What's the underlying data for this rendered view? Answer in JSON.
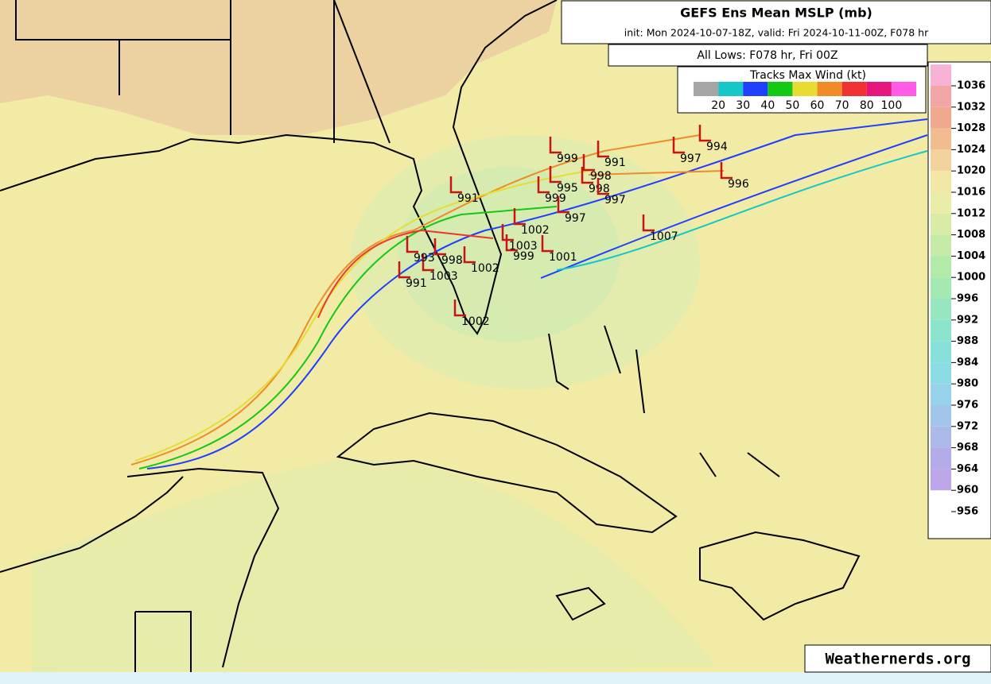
{
  "header": {
    "title": "GEFS Ens Mean MSLP (mb)",
    "subtitle": "init: Mon 2024-10-07-18Z, valid: Fri 2024-10-11-00Z, F078 hr",
    "lows_label": "All Lows: F078 hr, Fri 00Z"
  },
  "wind_legend": {
    "title": "Tracks Max Wind (kt)",
    "colors": [
      "#a6a6a6",
      "#17c6c6",
      "#1f3fff",
      "#14c814",
      "#e6dc32",
      "#f08c28",
      "#f03232",
      "#e6147d",
      "#ff5ae6"
    ],
    "labels": [
      "20",
      "30",
      "40",
      "50",
      "60",
      "70",
      "80",
      "100"
    ]
  },
  "pressure_scale": {
    "labels": [
      "1036",
      "1032",
      "1028",
      "1024",
      "1020",
      "1016",
      "1012",
      "1008",
      "1004",
      "1000",
      "996",
      "992",
      "988",
      "984",
      "980",
      "976",
      "972",
      "968",
      "964",
      "960",
      "956"
    ],
    "colors": [
      "#f7b3d6",
      "#f2a6a6",
      "#f0a88e",
      "#f0bc90",
      "#f2d39e",
      "#f3e7a6",
      "#eaedaa",
      "#d8eca8",
      "#c6eba8",
      "#b2eaa8",
      "#a4e8b2",
      "#98e6c0",
      "#8ce4cc",
      "#88e0da",
      "#8cdce6",
      "#96d2ea",
      "#a2c6ea",
      "#acbaea",
      "#b4acea",
      "#bea6ea"
    ]
  },
  "lows": [
    "999",
    "991",
    "994",
    "997",
    "998",
    "998",
    "995",
    "999",
    "997",
    "996",
    "997",
    "991",
    "1007",
    "1002",
    "1003",
    "1001",
    "999",
    "1002",
    "1003",
    "998",
    "993",
    "991",
    "1002"
  ],
  "footer": {
    "watermark": "Weathernerds.org"
  }
}
